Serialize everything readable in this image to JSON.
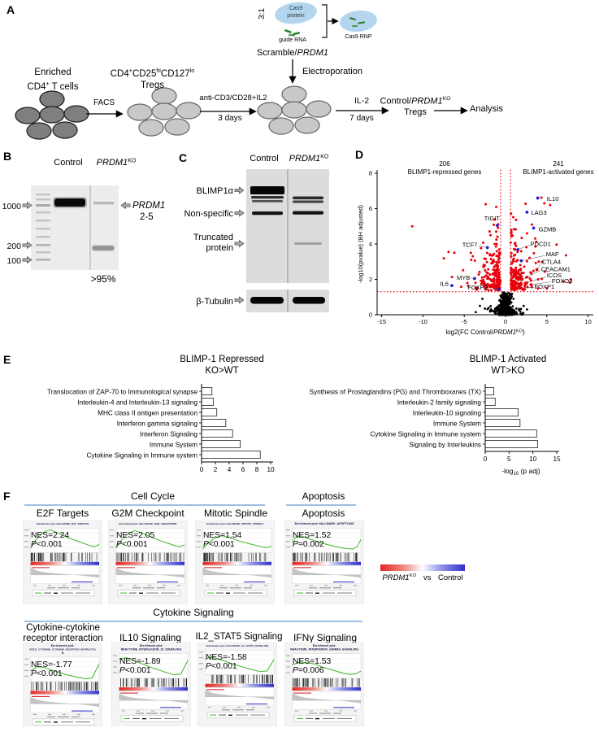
{
  "panel_letters": {
    "a": "A",
    "b": "B",
    "c": "C",
    "d": "D",
    "e": "E",
    "f": "F"
  },
  "panel_a": {
    "ratio": "3:1",
    "cas9": "Cas9",
    "protein": "protein",
    "guide_rna": "guide RNA",
    "cas9_rnp": "Cas9 RNP",
    "scramble_prefix": "Scramble/",
    "scramble_gene": "PRDM1",
    "electroporation": "Electroporation",
    "step1_line1": "Enriched",
    "step1_cd4": "CD4",
    "step1_sup": "+",
    "step1_rest": " T cells",
    "facs": "FACS",
    "step2_cd4": "CD4",
    "step2_sup1": "+",
    "step2_cd25": "CD25",
    "step2_sup2": "hi",
    "step2_cd127": "CD127",
    "step2_sup3": "lo",
    "step2_line2": "Tregs",
    "stim_top": "anti-CD3/CD28+IL2",
    "stim_bottom": "3 days",
    "il2_top": "IL-2",
    "il2_bottom": "7 days",
    "result_prefix": "Control/",
    "result_gene": "PRDM1",
    "result_sup": "KO",
    "result_line2": "Tregs",
    "analysis": "Analysis"
  },
  "panel_b": {
    "lane1": "Control",
    "lane2_gene": "PRDM1",
    "lane2_sup": "KO",
    "ladder": [
      "1000",
      "200",
      "100"
    ],
    "band_gene": "PRDM1",
    "band_sub": "2-5",
    "purity": ">95%"
  },
  "panel_c": {
    "lane1": "Control",
    "lane2_gene": "PRDM1",
    "lane2_sup": "KO",
    "row1": "BLIMP1α",
    "row2": "Non-specific",
    "row3a": "Truncated",
    "row3b": "protein",
    "row4": "β-Tubulin"
  },
  "panel_d": {
    "left_count": "206",
    "left_caption": "BLIMP1-repressed genes",
    "right_count": "241",
    "right_caption": "BLIMP1-activated genes",
    "ylabel": "-log10(pvalue) (BH adjusted)",
    "xlabel_prefix": "log2(FC Control/",
    "xlabel_gene": "PRDM1",
    "xlabel_sup": "KO",
    "xlabel_suffix": ")"
  },
  "panel_f": {
    "group1": "Cell Cycle",
    "group2": "Apoptosis",
    "group3": "Cytokine Signaling",
    "sub_t1": "E2F Targets",
    "sub_t2": "G2M Checkpoint",
    "sub_t3": "Mitotic Spindle",
    "sub_t4": "Apoptosis",
    "sub_b1a": "Cytokine-cytokine",
    "sub_b1b": "receptor interaction",
    "sub_b2": "IL10 Signaling",
    "sub_b3": "IL2_STAT5 Signaling",
    "sub_b4": "IFNγ Signaling",
    "p_prefix": "P",
    "legend_gene": "PRDM1",
    "legend_sup": "KO",
    "legend_vs": "vs",
    "legend_control": "Control"
  },
  "chart_data": [
    {
      "type": "scatter",
      "name": "volcano",
      "xlabel": "log2(FC Control/PRDM1KO)",
      "ylabel": "-log10(pvalue) (BH adjusted)",
      "xlim": [
        -15,
        10
      ],
      "ylim": [
        0,
        8
      ],
      "xticks": [
        -15,
        -10,
        -5,
        0,
        5,
        10
      ],
      "xtick_labels": [
        "-15",
        "-10",
        "-5",
        "0",
        "5",
        "10"
      ],
      "yticks": [
        0,
        2,
        4,
        6,
        8
      ],
      "ytick_labels": [
        "0",
        "2",
        "4",
        "6",
        "8"
      ],
      "thresholds": {
        "x": [
          -0.6,
          0.6
        ],
        "y": 1.3
      },
      "counts": {
        "repressed": 206,
        "activated": 241
      },
      "point_colors": {
        "up": "#e8000b",
        "ns": "#000000",
        "highlight": "#2222cc"
      },
      "genes": [
        {
          "name": "IL10",
          "x": 3.9,
          "y": 6.6,
          "color": "blue",
          "label_x": 5.0,
          "label_y": 6.55,
          "anchor": "start"
        },
        {
          "name": "LAG3",
          "x": 2.6,
          "y": 5.8,
          "color": "blue",
          "label_x": 3.1,
          "label_y": 5.78,
          "anchor": "start"
        },
        {
          "name": "GZMB",
          "x": 3.4,
          "y": 4.9,
          "color": "blue",
          "label_x": 4.0,
          "label_y": 4.82,
          "anchor": "start"
        },
        {
          "name": "TIGIT",
          "x": -1.0,
          "y": 5.05,
          "color": "blue",
          "label_x": -0.7,
          "label_y": 5.45,
          "anchor": "end"
        },
        {
          "name": "TCF7",
          "x": -2.2,
          "y": 3.8,
          "color": "blue",
          "label_x": -3.4,
          "label_y": 3.95,
          "anchor": "end",
          "leader": [
            -3.35,
            3.9
          ]
        },
        {
          "name": "PDCD1",
          "x": 1.5,
          "y": 3.68,
          "color": "blue",
          "label_x": 3.0,
          "label_y": 4.0,
          "anchor": "start",
          "leader": [
            2.95,
            3.95
          ]
        },
        {
          "name": "MAF",
          "x": 1.9,
          "y": 3.05,
          "color": "blue",
          "label_x": 4.9,
          "label_y": 3.42,
          "anchor": "start",
          "leader": [
            4.8,
            3.35
          ]
        },
        {
          "name": "CTLA4",
          "x": 3.8,
          "y": 2.55,
          "color": "red",
          "label_x": 4.4,
          "label_y": 3.0,
          "anchor": "start",
          "leader": [
            4.35,
            2.92
          ]
        },
        {
          "name": "CEACAM1",
          "x": 2.0,
          "y": 2.0,
          "color": "red",
          "label_x": 4.3,
          "label_y": 2.58,
          "anchor": "start",
          "leader": [
            4.25,
            2.5
          ]
        },
        {
          "name": "ICOS",
          "x": 2.4,
          "y": 1.78,
          "color": "red",
          "label_x": 5.0,
          "label_y": 2.22,
          "anchor": "start",
          "leader": [
            4.9,
            2.15
          ]
        },
        {
          "name": "FOXO3",
          "x": 3.1,
          "y": 1.7,
          "color": "red",
          "label_x": 5.6,
          "label_y": 1.9,
          "anchor": "start",
          "leader": [
            5.5,
            1.86
          ]
        },
        {
          "name": "FOXP1",
          "x": 1.8,
          "y": 1.5,
          "color": "red",
          "label_x": 3.5,
          "label_y": 1.58,
          "anchor": "start",
          "leader": [
            3.45,
            1.55
          ]
        },
        {
          "name": "MYB",
          "x": -3.75,
          "y": 2.05,
          "color": "blue",
          "label_x": -4.3,
          "label_y": 2.1,
          "anchor": "end",
          "leader": [
            -4.25,
            2.08
          ]
        },
        {
          "name": "IL6",
          "x": -6.5,
          "y": 1.65,
          "color": "blue",
          "label_x": -6.9,
          "label_y": 1.75,
          "anchor": "end"
        },
        {
          "name": "FOXP3",
          "x": -0.8,
          "y": 1.45,
          "color": "blue",
          "label_x": -4.6,
          "label_y": 1.55,
          "anchor": "start",
          "leader": [
            -1.6,
            1.5
          ]
        }
      ],
      "extra_red": [
        [
          4.35,
          6.62
        ],
        [
          4.7,
          6.3
        ],
        [
          -11.3,
          5.0
        ],
        [
          -2.4,
          6.25
        ],
        [
          5.4,
          6.2
        ],
        [
          -6.9,
          3.55
        ],
        [
          -6.2,
          3.5
        ],
        [
          3.2,
          5.1
        ],
        [
          2.6,
          4.6
        ],
        [
          -4.2,
          3.5
        ]
      ],
      "extra_black": [
        [
          -2.8,
          0.9
        ],
        [
          -3.1,
          0.5
        ],
        [
          -2.5,
          0.35
        ],
        [
          2.2,
          0.5
        ],
        [
          2.6,
          0.3
        ],
        [
          -3.6,
          0.15
        ]
      ]
    },
    {
      "type": "bar",
      "title": "BLIMP-1 Repressed",
      "subtitle": "KO>WT",
      "categories": [
        "Translocation of ZAP-70 to Immunological synapse",
        "Interleukin-4 and Interleukin-13 signaling",
        "MHC class II antigen presentation",
        "Interferon gamma signaling",
        "Interferon Signaling",
        "Immune System",
        "Cytokine Signaling in Immune system"
      ],
      "values": [
        1.5,
        1.7,
        2.2,
        3.5,
        4.5,
        5.6,
        8.5
      ],
      "xlim": [
        0,
        10
      ],
      "xticks": [
        0,
        2,
        4,
        6,
        8,
        10
      ],
      "xtick_labels": [
        "0",
        "2",
        "4",
        "6",
        "8",
        "10"
      ],
      "xlabel": ""
    },
    {
      "type": "bar",
      "title": "BLIMP-1 Activated",
      "subtitle": "WT>KO",
      "categories": [
        "Synthesis of Prostaglandins (PG) and Thromboxanes (TX)",
        "Interleukin-2 family signaling",
        "Interleukin-10 signaling",
        "Immune System",
        "Cytokine Signaling in Immune system",
        "Signaling by Interleukins"
      ],
      "values": [
        1.8,
        2.1,
        6.9,
        7.3,
        10.8,
        11.0
      ],
      "xlim": [
        0,
        15
      ],
      "xticks": [
        0,
        5,
        10,
        15
      ],
      "xtick_labels": [
        "0",
        "5",
        "10",
        "15"
      ],
      "xlabel_prefix": "-log",
      "xlabel_sub": "10",
      "xlabel_suffix": " (p adj)"
    },
    {
      "type": "gsea",
      "plots": [
        {
          "subtitle": "E2F Targets",
          "title_lines": [
            "Enrichment plot: HALLMARK_E2F_TARGETS"
          ],
          "nes_label": "NES=2.24",
          "nes": 2.24,
          "p_value": "<0.001",
          "profile": "peak"
        },
        {
          "subtitle": "G2M Checkpoint",
          "title_lines": [
            "Enrichment plot: HALLMARK_G2M_CHECKPOINT"
          ],
          "nes_label": "NES=2.05",
          "nes": 2.05,
          "p_value": "<0.001",
          "profile": "peak"
        },
        {
          "subtitle": "Mitotic Spindle",
          "title_lines": [
            "Enrichment plot: HALLMARK_MITOTIC_SPINDLE"
          ],
          "nes_label": "NES=1.54",
          "nes": 1.54,
          "p_value": "<0.001",
          "profile": "peak"
        },
        {
          "subtitle": "Apoptosis",
          "title_lines": [
            "Enrichment plot: HALLMARK_APOPTOSIS"
          ],
          "nes_label": "NES=1.52",
          "nes": 1.52,
          "p_value": "=0.002",
          "profile": "peak-early"
        },
        {
          "subtitle": "Cytokine-cytokine receptor interaction",
          "title_lines": [
            "Enrichment plot:",
            "KEGG_CYTOKINE_CYTOKINE_RECEPTOR_INTERACTIO",
            "N"
          ],
          "nes_label": "NES=-1.77",
          "nes": -1.77,
          "p_value": "<0.001",
          "profile": "trough"
        },
        {
          "subtitle": "IL10 Signaling",
          "title_lines": [
            "Enrichment plot:",
            "REACTOME_INTERLEUKIN_10_SIGNALING"
          ],
          "nes_label": "NES=-1.89",
          "nes": -1.89,
          "p_value": "<0.001",
          "profile": "decline"
        },
        {
          "subtitle": "IL2_STAT5 Signaling",
          "title_lines": [
            "Enrichment plot: HALLMARK_IL2_STAT5_SIGNALING"
          ],
          "nes_label": "NES=-1.58",
          "nes": -1.58,
          "p_value": "<0.001",
          "profile": "decline"
        },
        {
          "subtitle": "IFNγ Signaling",
          "title_lines": [
            "Enrichment plot:",
            "REACTOME_INTERFERON_GAMMA_SIGNALING"
          ],
          "nes_label": "NES=1.53",
          "nes": 1.53,
          "p_value": "=0.006",
          "profile": "decline-mild"
        }
      ]
    }
  ]
}
